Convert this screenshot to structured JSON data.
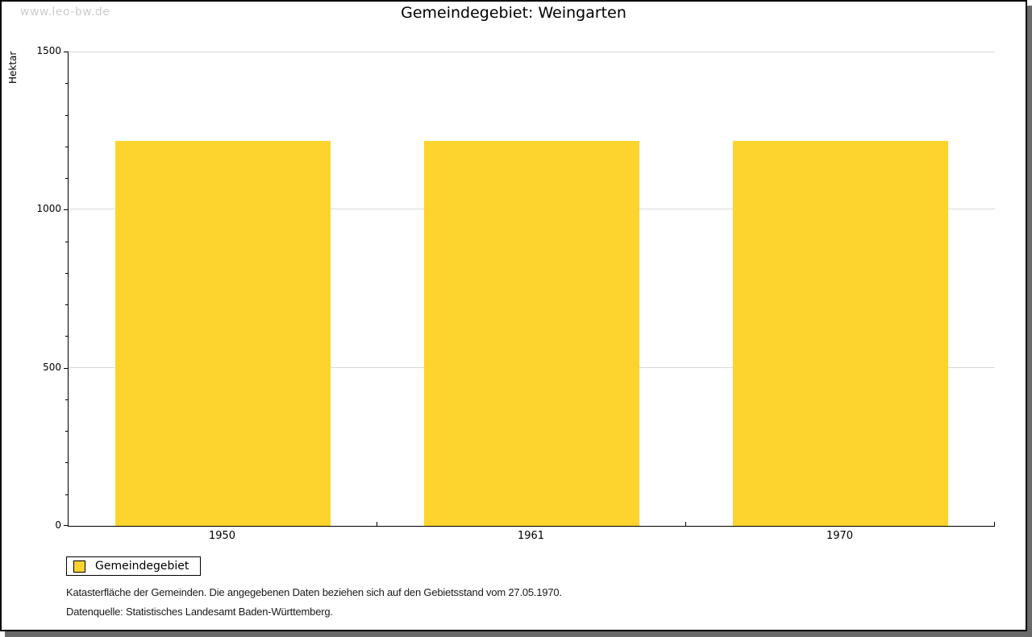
{
  "watermark": "www.leo-bw.de",
  "title": "Gemeindegebiet: Weingarten",
  "chart_data": {
    "type": "bar",
    "title": "Gemeindegebiet: Weingarten",
    "categories": [
      "1950",
      "1961",
      "1970"
    ],
    "series": [
      {
        "name": "Gemeindegebiet",
        "values": [
          1217,
          1217,
          1217
        ]
      }
    ],
    "xlabel": "",
    "ylabel": "Hektar",
    "ylim": [
      0,
      1500
    ],
    "yticks": [
      0,
      500,
      1000,
      1500
    ],
    "y_minor_tick_step": 100,
    "grid": true,
    "legend_position": "bottom-left",
    "bar_color": "#FCD42D"
  },
  "legend": {
    "items": [
      {
        "label": "Gemeindegebiet",
        "color": "#FCD42D"
      }
    ]
  },
  "footnotes": {
    "line1": "Katasterfläche der Gemeinden. Die angegebenen Daten beziehen sich auf den Gebietsstand vom 27.05.1970.",
    "line2": "Datenquelle: Statistisches Landesamt Baden-Württemberg."
  },
  "colors": {
    "bar": "#FCD42D",
    "gridline": "#d9d9d9",
    "axis": "#000000",
    "watermark": "#cccccc",
    "frame_shadow": "#696969",
    "background": "#ffffff"
  }
}
